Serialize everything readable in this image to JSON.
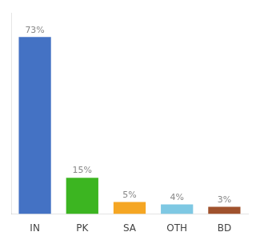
{
  "chart_data": {
    "type": "bar",
    "categories": [
      "IN",
      "PK",
      "SA",
      "OTH",
      "BD"
    ],
    "values": [
      73,
      15,
      5,
      4,
      3
    ],
    "value_labels": [
      "73%",
      "15%",
      "5%",
      "4%",
      "3%"
    ],
    "colors": [
      "#4472c4",
      "#3cb521",
      "#f5a623",
      "#7ec8e3",
      "#a0522d"
    ],
    "ylim": [
      0,
      83
    ],
    "grid": false,
    "data_labels": true,
    "tick_labels": "x"
  }
}
